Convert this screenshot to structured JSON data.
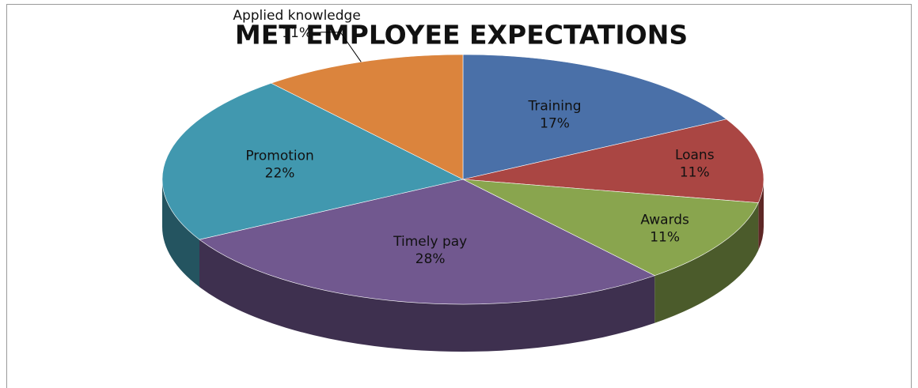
{
  "chart_data": {
    "type": "pie",
    "title": "MET EMPLOYEE EXPECTATIONS",
    "categories": [
      "Training",
      "Loans",
      "Awards",
      "Timely pay",
      "Promotion",
      "Applied knowledge"
    ],
    "values": [
      17,
      11,
      11,
      28,
      22,
      11
    ],
    "value_labels": [
      "17%",
      "11%",
      "11%",
      "28%",
      "22%",
      "11%"
    ],
    "colors": [
      "#4a70a8",
      "#aa4643",
      "#89a54e",
      "#71588f",
      "#4198af",
      "#db843d"
    ]
  }
}
